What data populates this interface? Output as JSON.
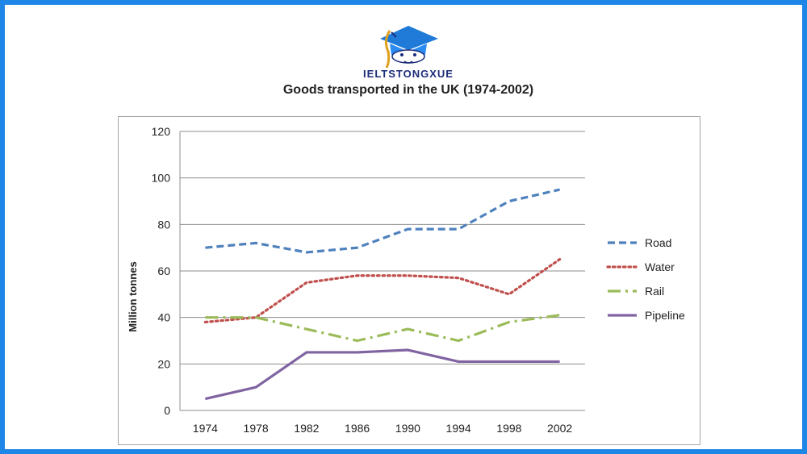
{
  "brand": {
    "name": "IELTSTONGXUE"
  },
  "chart_data": {
    "type": "line",
    "title": "Goods transported in the UK (1974-2002)",
    "xlabel": "",
    "ylabel": "Million tonnes",
    "categories": [
      "1974",
      "1978",
      "1982",
      "1986",
      "1990",
      "1994",
      "1998",
      "2002"
    ],
    "yticks": [
      "0",
      "20",
      "40",
      "60",
      "80",
      "100",
      "120"
    ],
    "ylim": [
      0,
      120
    ],
    "grid": true,
    "legend_position": "right",
    "series": [
      {
        "name": "Road",
        "values": [
          70,
          72,
          68,
          70,
          78,
          78,
          90,
          95
        ],
        "color": "#4f81bd",
        "dash": "dashed"
      },
      {
        "name": "Water",
        "values": [
          38,
          40,
          55,
          58,
          58,
          57,
          50,
          65
        ],
        "color": "#c0504d",
        "dash": "dotted"
      },
      {
        "name": "Rail",
        "values": [
          40,
          40,
          35,
          30,
          35,
          30,
          38,
          41
        ],
        "color": "#9bbb59",
        "dash": "dash-dot"
      },
      {
        "name": "Pipeline",
        "values": [
          5,
          10,
          25,
          25,
          26,
          21,
          21,
          21
        ],
        "color": "#8064a2",
        "dash": "solid"
      }
    ]
  }
}
